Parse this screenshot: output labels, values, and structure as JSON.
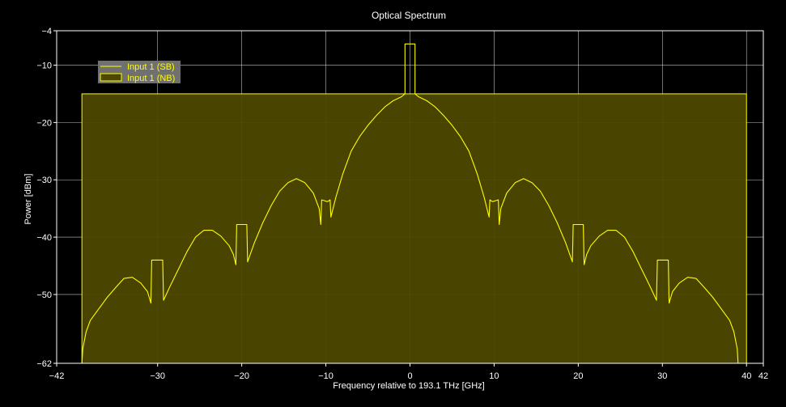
{
  "chart_data": {
    "type": "line",
    "title": "Optical Spectrum",
    "xlabel": "Frequency relative to 193.1 THz [GHz]",
    "ylabel": "Power [dBm]",
    "xlim": [
      -42,
      42
    ],
    "ylim": [
      -62,
      -4
    ],
    "xticks": [
      -42,
      -30,
      -20,
      -10,
      0,
      10,
      20,
      30,
      40,
      42
    ],
    "yticks": [
      -4,
      -10,
      -20,
      -30,
      -40,
      -50,
      -62
    ],
    "grid": true,
    "legend_position": "top-left",
    "colors": {
      "background": "#000000",
      "axis": "#ffffff",
      "grid": "#ffffff",
      "line": "#ffff00",
      "fill": "#4d4800",
      "legend_bg": "#707070"
    },
    "series": [
      {
        "name": "Input 1  (SB)",
        "style": "line",
        "points": [
          [
            -39.0,
            -62
          ],
          [
            -38.9,
            -59.5
          ],
          [
            -38.5,
            -56.5
          ],
          [
            -38.0,
            -54.5
          ],
          [
            -37.0,
            -52.5
          ],
          [
            -36.0,
            -50.5
          ],
          [
            -35.0,
            -48.8
          ],
          [
            -34.0,
            -47.2
          ],
          [
            -33.0,
            -47.0
          ],
          [
            -32.0,
            -48.0
          ],
          [
            -31.2,
            -49.5
          ],
          [
            -30.8,
            -51.5
          ],
          [
            -30.7,
            -44.0
          ],
          [
            -29.4,
            -44.0
          ],
          [
            -29.3,
            -51.0
          ],
          [
            -28.5,
            -48.5
          ],
          [
            -27.5,
            -45.5
          ],
          [
            -26.5,
            -42.5
          ],
          [
            -25.5,
            -40.0
          ],
          [
            -24.5,
            -38.8
          ],
          [
            -23.5,
            -38.8
          ],
          [
            -22.5,
            -39.8
          ],
          [
            -21.5,
            -41.5
          ],
          [
            -21.0,
            -43.0
          ],
          [
            -20.7,
            -44.8
          ],
          [
            -20.6,
            -37.8
          ],
          [
            -19.4,
            -37.8
          ],
          [
            -19.3,
            -44.3
          ],
          [
            -18.5,
            -41.0
          ],
          [
            -17.5,
            -37.5
          ],
          [
            -16.5,
            -34.5
          ],
          [
            -15.5,
            -32.0
          ],
          [
            -14.5,
            -30.5
          ],
          [
            -13.5,
            -29.8
          ],
          [
            -12.5,
            -30.5
          ],
          [
            -11.5,
            -32.3
          ],
          [
            -10.8,
            -35.0
          ],
          [
            -10.6,
            -37.8
          ],
          [
            -10.5,
            -33.5
          ],
          [
            -9.8,
            -33.8
          ],
          [
            -9.5,
            -33.5
          ],
          [
            -9.4,
            -36.5
          ],
          [
            -8.8,
            -33.0
          ],
          [
            -8.0,
            -29.0
          ],
          [
            -7.0,
            -25.0
          ],
          [
            -6.0,
            -22.5
          ],
          [
            -5.0,
            -20.5
          ],
          [
            -4.0,
            -18.8
          ],
          [
            -3.0,
            -17.3
          ],
          [
            -2.0,
            -16.2
          ],
          [
            -1.0,
            -15.5
          ],
          [
            -0.6,
            -15.0
          ],
          [
            -0.6,
            -6.3
          ],
          [
            0.6,
            -6.3
          ],
          [
            0.6,
            -15.0
          ],
          [
            1.0,
            -15.5
          ],
          [
            2.0,
            -16.2
          ],
          [
            3.0,
            -17.3
          ],
          [
            4.0,
            -18.8
          ],
          [
            5.0,
            -20.5
          ],
          [
            6.0,
            -22.5
          ],
          [
            7.0,
            -25.0
          ],
          [
            8.0,
            -29.0
          ],
          [
            8.8,
            -33.0
          ],
          [
            9.4,
            -36.5
          ],
          [
            9.5,
            -33.5
          ],
          [
            9.8,
            -33.8
          ],
          [
            10.5,
            -33.5
          ],
          [
            10.6,
            -37.8
          ],
          [
            10.8,
            -35.0
          ],
          [
            11.5,
            -32.3
          ],
          [
            12.5,
            -30.5
          ],
          [
            13.5,
            -29.8
          ],
          [
            14.5,
            -30.5
          ],
          [
            15.5,
            -32.0
          ],
          [
            16.5,
            -34.5
          ],
          [
            17.5,
            -37.5
          ],
          [
            18.5,
            -41.0
          ],
          [
            19.3,
            -44.3
          ],
          [
            19.4,
            -37.8
          ],
          [
            20.6,
            -37.8
          ],
          [
            20.7,
            -44.8
          ],
          [
            21.0,
            -43.0
          ],
          [
            21.5,
            -41.5
          ],
          [
            22.5,
            -39.8
          ],
          [
            23.5,
            -38.8
          ],
          [
            24.5,
            -38.8
          ],
          [
            25.5,
            -40.0
          ],
          [
            26.5,
            -42.5
          ],
          [
            27.5,
            -45.5
          ],
          [
            28.5,
            -48.5
          ],
          [
            29.3,
            -51.0
          ],
          [
            29.4,
            -44.0
          ],
          [
            30.7,
            -44.0
          ],
          [
            30.8,
            -51.5
          ],
          [
            31.2,
            -49.5
          ],
          [
            32.0,
            -48.0
          ],
          [
            33.0,
            -47.0
          ],
          [
            34.0,
            -47.2
          ],
          [
            35.0,
            -48.8
          ],
          [
            36.0,
            -50.5
          ],
          [
            37.0,
            -52.5
          ],
          [
            38.0,
            -54.5
          ],
          [
            38.5,
            -56.5
          ],
          [
            38.9,
            -59.5
          ],
          [
            39.0,
            -62
          ]
        ]
      },
      {
        "name": "Input 1  (NB)",
        "style": "filled-rect",
        "x_range": [
          -39.0,
          40.0
        ],
        "level": -15
      }
    ]
  }
}
